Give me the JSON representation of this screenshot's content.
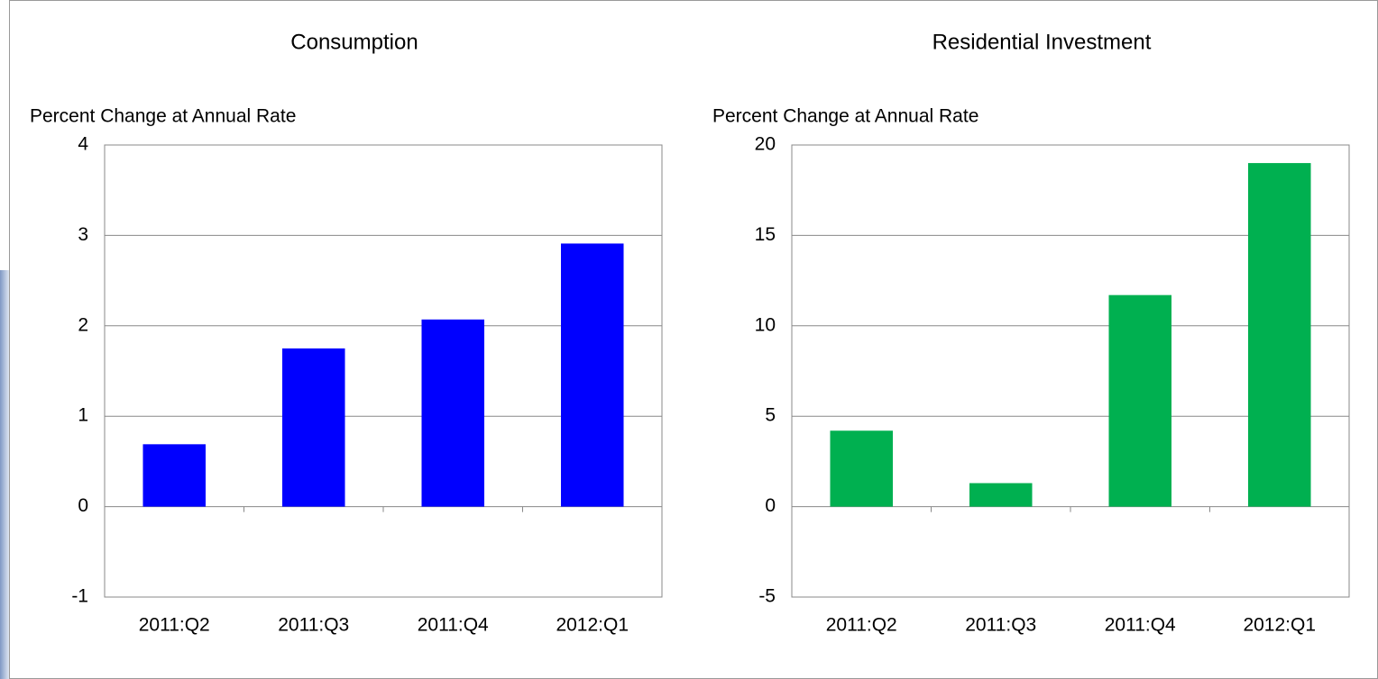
{
  "chart_data": [
    {
      "type": "bar",
      "title": "Consumption",
      "y_label": "Percent Change at Annual Rate",
      "categories": [
        "2011:Q2",
        "2011:Q3",
        "2011:Q4",
        "2012:Q1"
      ],
      "values": [
        0.69,
        1.75,
        2.07,
        2.91
      ],
      "color": "#0000ff",
      "ylim": [
        -1,
        4
      ],
      "yticks": [
        -1,
        0,
        1,
        2,
        3,
        4
      ],
      "grid": true
    },
    {
      "type": "bar",
      "title": "Residential Investment",
      "y_label": "Percent Change at Annual Rate",
      "categories": [
        "2011:Q2",
        "2011:Q3",
        "2011:Q4",
        "2012:Q1"
      ],
      "values": [
        4.2,
        1.3,
        11.7,
        19.0
      ],
      "color": "#00b050",
      "ylim": [
        -5,
        20
      ],
      "yticks": [
        -5,
        0,
        5,
        10,
        15,
        20
      ],
      "grid": true
    }
  ]
}
